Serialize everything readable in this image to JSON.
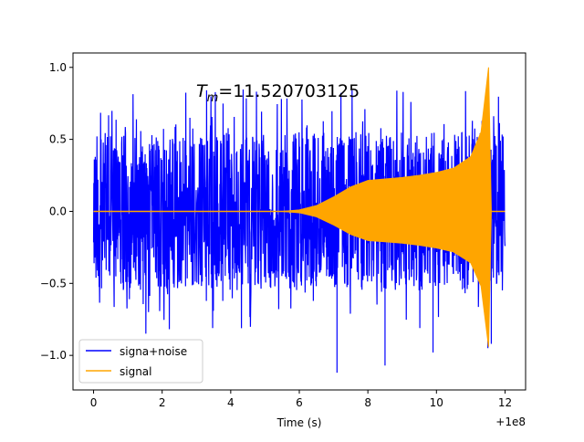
{
  "chart_data": {
    "type": "line",
    "title": "",
    "annotation": {
      "symbol": "T",
      "subscript": "m",
      "value": "=11.520703125"
    },
    "xlabel": "Time (s)",
    "ylabel": "",
    "x_offset_label": "+1e8",
    "xlim": [
      -0.6,
      12.6
    ],
    "ylim": [
      -1.24,
      1.1
    ],
    "x_ticks": [
      0,
      2,
      4,
      6,
      8,
      10,
      12
    ],
    "y_ticks": [
      -1.0,
      -0.5,
      0.0,
      0.5,
      1.0
    ],
    "x_tick_labels": [
      "0",
      "2",
      "4",
      "6",
      "8",
      "10",
      "12"
    ],
    "y_tick_labels": [
      "−1.0",
      "−0.5",
      "0.0",
      "0.5",
      "1.0"
    ],
    "grid": false,
    "legend_placement": "lower-left",
    "series": [
      {
        "name": "signa+noise",
        "color": "#0000ff",
        "description_note": "",
        "x_range": [
          0,
          12
        ],
        "noise_band": [
          -0.55,
          0.55
        ],
        "spike_max": 0.85,
        "spike_min": -1.12
      },
      {
        "name": "signal",
        "color": "#ffa500",
        "envelope": [
          {
            "x": 0.0,
            "amp": 0.0
          },
          {
            "x": 5.5,
            "amp": 0.0
          },
          {
            "x": 6.0,
            "amp": 0.01
          },
          {
            "x": 6.5,
            "amp": 0.04
          },
          {
            "x": 7.0,
            "amp": 0.1
          },
          {
            "x": 7.5,
            "amp": 0.17
          },
          {
            "x": 8.0,
            "amp": 0.215
          },
          {
            "x": 8.5,
            "amp": 0.225
          },
          {
            "x": 9.0,
            "amp": 0.235
          },
          {
            "x": 9.5,
            "amp": 0.25
          },
          {
            "x": 10.0,
            "amp": 0.27
          },
          {
            "x": 10.5,
            "amp": 0.3
          },
          {
            "x": 11.0,
            "amp": 0.38
          },
          {
            "x": 11.3,
            "amp": 0.55
          },
          {
            "x": 11.52,
            "amp": 1.0
          },
          {
            "x": 11.6,
            "amp": 0.0
          },
          {
            "x": 12.0,
            "amp": 0.0
          }
        ]
      }
    ]
  }
}
